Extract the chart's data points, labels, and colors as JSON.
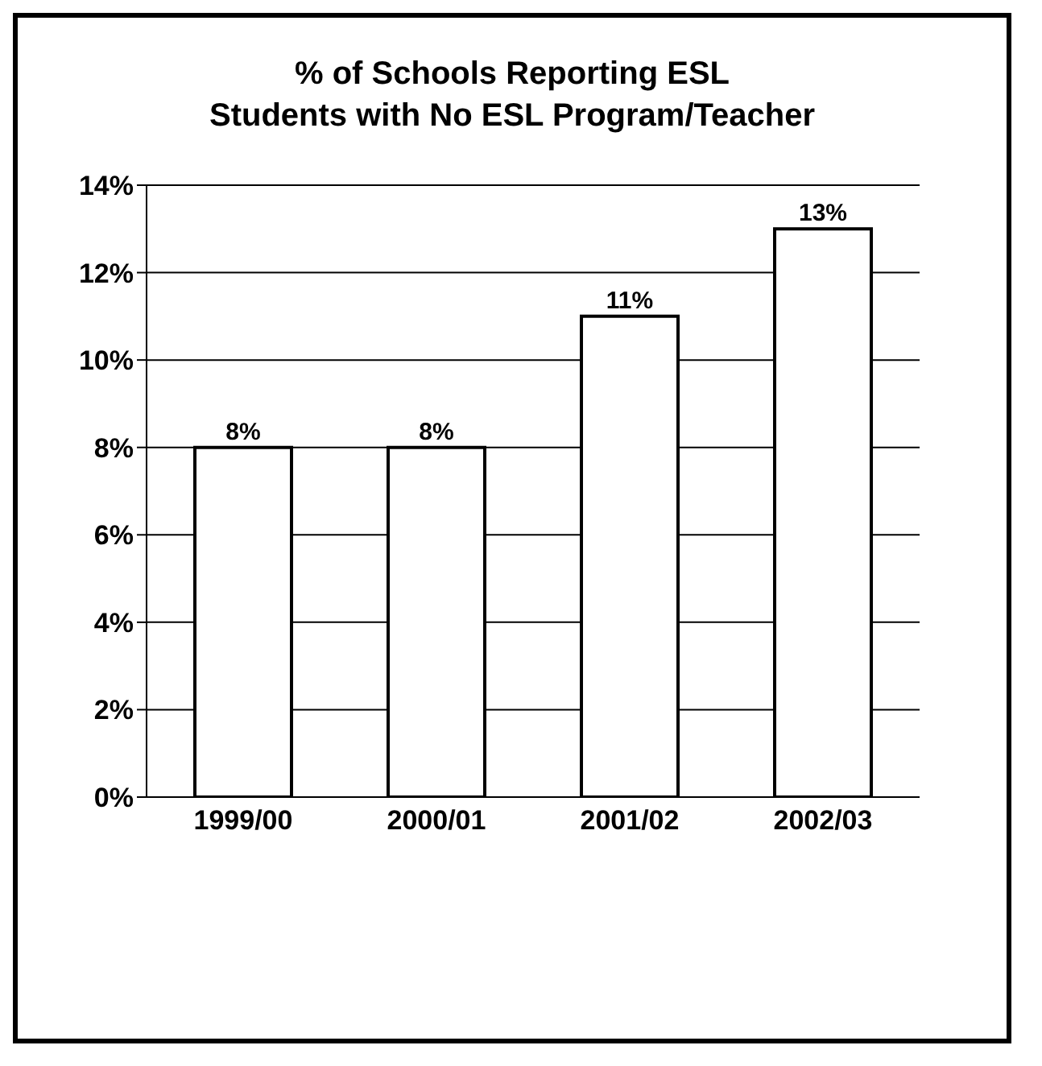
{
  "chart_data": {
    "type": "bar",
    "title": "% of Schools Reporting ESL\nStudents with No ESL Program/Teacher",
    "categories": [
      "1999/00",
      "2000/01",
      "2001/02",
      "2002/03"
    ],
    "values": [
      8,
      8,
      11,
      13
    ],
    "value_labels": [
      "8%",
      "8%",
      "11%",
      "13%"
    ],
    "color": "#ffffff",
    "ylim": [
      0,
      14
    ],
    "yticks": [
      {
        "value": 0,
        "label": "0%"
      },
      {
        "value": 2,
        "label": "2%"
      },
      {
        "value": 4,
        "label": "4%"
      },
      {
        "value": 6,
        "label": "6%"
      },
      {
        "value": 8,
        "label": "8%"
      },
      {
        "value": 10,
        "label": "10%"
      },
      {
        "value": 12,
        "label": "12%"
      },
      {
        "value": 14,
        "label": "14%"
      }
    ],
    "grid": "y"
  }
}
